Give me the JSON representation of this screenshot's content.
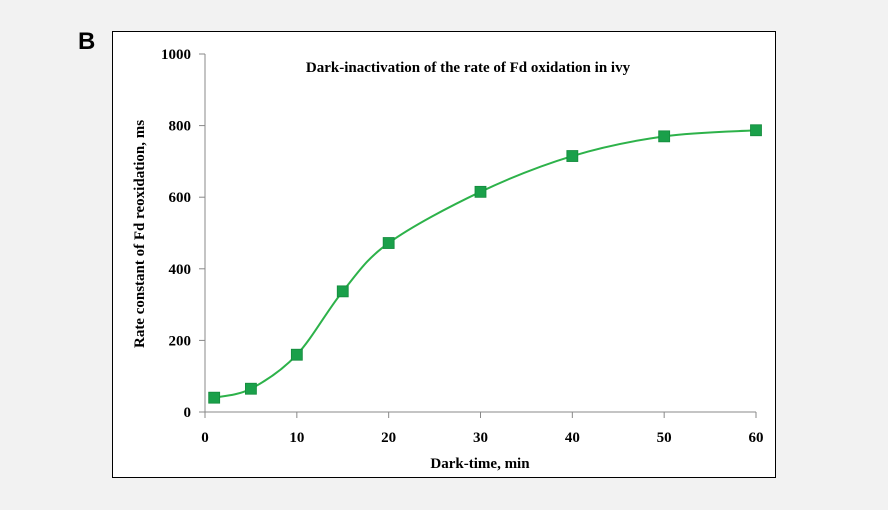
{
  "panel_label": "B",
  "chart_data": {
    "type": "line",
    "title": "Dark-inactivation of the rate of Fd oxidation in ivy",
    "xlabel": "Dark-time, min",
    "ylabel": "Rate constant of Fd reoxidation, ms",
    "xlim": [
      0,
      60
    ],
    "ylim": [
      0,
      1000
    ],
    "xticks": [
      0,
      10,
      20,
      30,
      40,
      50,
      60
    ],
    "yticks": [
      0,
      200,
      400,
      600,
      800,
      1000
    ],
    "grid": false,
    "series": [
      {
        "x": [
          1,
          5,
          10,
          15,
          20,
          30,
          40,
          50,
          60
        ],
        "y": [
          40,
          65,
          160,
          337,
          472,
          615,
          715,
          770,
          787
        ],
        "line_color": "#2db24a",
        "marker": "square",
        "marker_color": "#1aa04a"
      }
    ]
  }
}
